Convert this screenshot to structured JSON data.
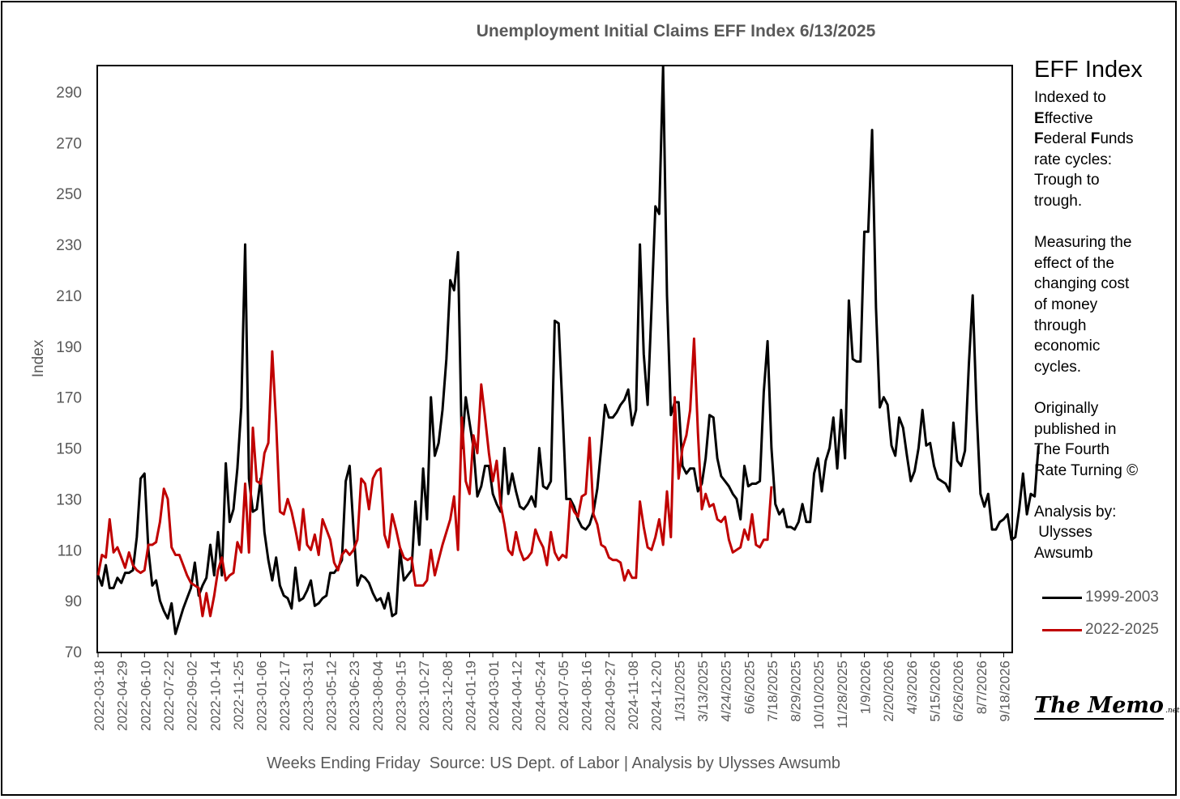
{
  "chart_data": {
    "type": "line",
    "title": "Unemployment Initial Claims EFF Index 6/13/2025",
    "xlabel": "Weeks Ending Friday  Source: US Dept. of Labor | Analysis by Ulysses Awsumb",
    "ylabel": "Index",
    "ylim": [
      70,
      300
    ],
    "yticks": [
      70,
      90,
      110,
      130,
      150,
      170,
      190,
      210,
      230,
      250,
      270,
      290
    ],
    "grid": false,
    "legend_position": "right",
    "x_tick_labels": [
      "2022-03-18",
      "2022-04-29",
      "2022-06-10",
      "2022-07-22",
      "2022-09-02",
      "2022-10-14",
      "2022-11-25",
      "2023-01-06",
      "2023-02-17",
      "2023-03-31",
      "2023-05-12",
      "2023-06-23",
      "2023-08-04",
      "2023-09-15",
      "2023-10-27",
      "2023-12-08",
      "2024-01-19",
      "2024-03-01",
      "2024-04-12",
      "2024-05-24",
      "2024-07-05",
      "2024-08-16",
      "2024-09-27",
      "2024-11-08",
      "2024-12-20",
      "1/31/2025",
      "3/13/2025",
      "4/24/2025",
      "6/6/2025",
      "7/18/2025",
      "8/29/2025",
      "10/10/2025",
      "11/28/2025",
      "1/9/2026",
      "2/20/2026",
      "4/3/2026",
      "5/15/2026",
      "6/26/2026",
      "8/7/2026",
      "9/18/2026"
    ],
    "tick_spacing_weeks": 6,
    "x_weeks_total": 237,
    "series": [
      {
        "name": "1999-2003",
        "color": "#000000",
        "values": [
          100,
          96,
          104,
          95,
          95,
          99,
          97,
          101,
          101,
          102,
          115,
          138,
          140,
          110,
          96,
          98,
          90,
          86,
          83,
          89,
          77,
          82,
          87,
          91,
          95,
          105,
          92,
          96,
          99,
          112,
          100,
          117,
          100,
          144,
          121,
          126,
          142,
          166,
          230,
          138,
          125,
          126,
          138,
          117,
          106,
          98,
          107,
          96,
          92,
          91,
          87,
          103,
          90,
          91,
          94,
          98,
          88,
          89,
          91,
          92,
          101,
          101,
          103,
          106,
          137,
          143,
          118,
          96,
          100,
          99,
          97,
          93,
          90,
          91,
          87,
          93,
          84,
          85,
          110,
          98,
          100,
          102,
          129,
          112,
          142,
          122,
          170,
          147,
          152,
          165,
          185,
          216,
          212,
          227,
          150,
          170,
          160,
          150,
          131,
          135,
          143,
          143,
          132,
          128,
          125,
          150,
          132,
          140,
          133,
          127,
          126,
          128,
          131,
          127,
          150,
          135,
          134,
          137,
          200,
          199,
          165,
          130,
          130,
          127,
          122,
          119,
          118,
          120,
          125,
          134,
          150,
          167,
          162,
          162,
          164,
          167,
          169,
          173,
          159,
          165,
          230,
          187,
          167,
          205,
          245,
          242,
          300,
          210,
          163,
          168,
          168,
          143,
          140,
          142,
          142,
          133,
          136,
          146,
          163,
          162,
          146,
          139,
          137,
          135,
          132,
          130,
          122,
          143,
          135,
          136,
          136,
          137,
          172,
          192,
          150,
          128,
          124,
          126,
          119,
          119,
          118,
          121,
          128,
          121,
          121,
          140,
          146,
          133,
          145,
          150,
          162,
          142,
          165,
          146,
          208,
          185,
          184,
          184,
          235,
          235,
          275,
          205,
          166,
          170,
          167,
          151,
          147,
          162,
          158,
          147,
          137,
          141,
          150,
          165,
          151,
          152,
          143,
          138,
          137,
          136,
          133,
          160,
          145,
          143,
          149,
          183,
          210,
          165,
          132,
          127,
          132,
          118,
          118,
          121,
          122,
          124,
          114,
          115,
          126,
          140,
          124,
          132,
          131,
          151
        ]
      },
      {
        "name": "2022-2025",
        "color": "#c00000",
        "values": [
          100,
          108,
          107,
          122,
          109,
          111,
          107,
          103,
          109,
          104,
          102,
          101,
          102,
          112,
          112,
          113,
          121,
          134,
          130,
          111,
          108,
          108,
          104,
          100,
          97,
          96,
          95,
          84,
          93,
          84,
          92,
          102,
          107,
          98,
          100,
          101,
          113,
          109,
          136,
          109,
          158,
          137,
          136,
          148,
          152,
          188,
          160,
          125,
          124,
          130,
          125,
          118,
          110,
          126,
          112,
          110,
          116,
          108,
          122,
          118,
          114,
          105,
          102,
          108,
          110,
          108,
          110,
          114,
          138,
          136,
          126,
          138,
          141,
          142,
          116,
          111,
          124,
          118,
          111,
          107,
          106,
          107,
          96,
          96,
          96,
          98,
          110,
          100,
          106,
          112,
          117,
          122,
          131,
          110,
          162,
          137,
          132,
          155,
          148,
          175,
          162,
          148,
          137,
          145,
          128,
          120,
          110,
          108,
          117,
          110,
          106,
          107,
          109,
          118,
          114,
          111,
          104,
          117,
          109,
          106,
          108,
          107,
          129,
          125,
          123,
          131,
          132,
          154,
          124,
          120,
          112,
          111,
          107,
          106,
          106,
          105,
          98,
          102,
          99,
          99,
          129,
          119,
          111,
          110,
          115,
          122,
          112,
          133,
          115,
          170,
          138,
          150,
          155,
          165,
          193,
          156,
          126,
          132,
          127,
          128,
          122,
          121,
          123,
          114,
          109,
          110,
          111,
          118,
          114,
          124,
          112,
          111,
          114,
          114,
          135
        ]
      }
    ]
  },
  "side_panel": {
    "title": "EFF Index",
    "indexed_to": "Indexed to",
    "effective_initial": "E",
    "effective_rest": "ffective",
    "federal_initial": "F",
    "federal_rest": "ederal ",
    "funds_initial": "F",
    "funds_rest": "unds",
    "rate_cycles": "rate cycles:",
    "trough_to": "Trough to",
    "trough": "trough.",
    "measuring_1": "Measuring the",
    "measuring_2": "effect of the",
    "measuring_3": "changing cost",
    "measuring_4": "of money",
    "measuring_5": "through",
    "measuring_6": "economic",
    "measuring_7": "cycles.",
    "published_1": "Originally",
    "published_2": "published in",
    "published_3": "The Fourth",
    "published_4": "Rate Turning ©",
    "analysis_1": "Analysis by:",
    "analysis_2": " Ulysses",
    "analysis_3": "Awsumb"
  },
  "legend": [
    {
      "label": "1999-2003",
      "color": "#000000"
    },
    {
      "label": "2022-2025",
      "color": "#c00000"
    }
  ],
  "logo": {
    "main": "The Memo",
    "sub": ".net"
  }
}
